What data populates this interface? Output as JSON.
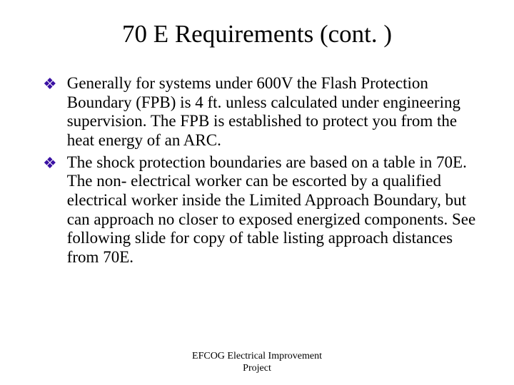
{
  "slide": {
    "title": "70 E Requirements (cont. )",
    "background_color": "#ffffff",
    "title_fontsize": 35,
    "title_color": "#000000",
    "bullet_marker": "❖",
    "bullet_marker_color": "#3a11a3",
    "bullet_fontsize": 23,
    "bullet_color": "#000000",
    "bullets": [
      "Generally for systems under 600V the Flash Protection Boundary (FPB) is 4 ft. unless calculated under engineering supervision.  The FPB is established to protect you from the heat energy of an ARC.",
      "The shock protection boundaries are based on a table in 70E.  The non- electrical worker can be escorted by a qualified electrical worker inside the Limited Approach Boundary, but can approach no closer to exposed energized components.  See following slide for copy of table listing approach distances from 70E."
    ],
    "footer_line1": "EFCOG Electrical Improvement",
    "footer_line2": "Project",
    "footer_fontsize": 14,
    "footer_color": "#000000"
  }
}
